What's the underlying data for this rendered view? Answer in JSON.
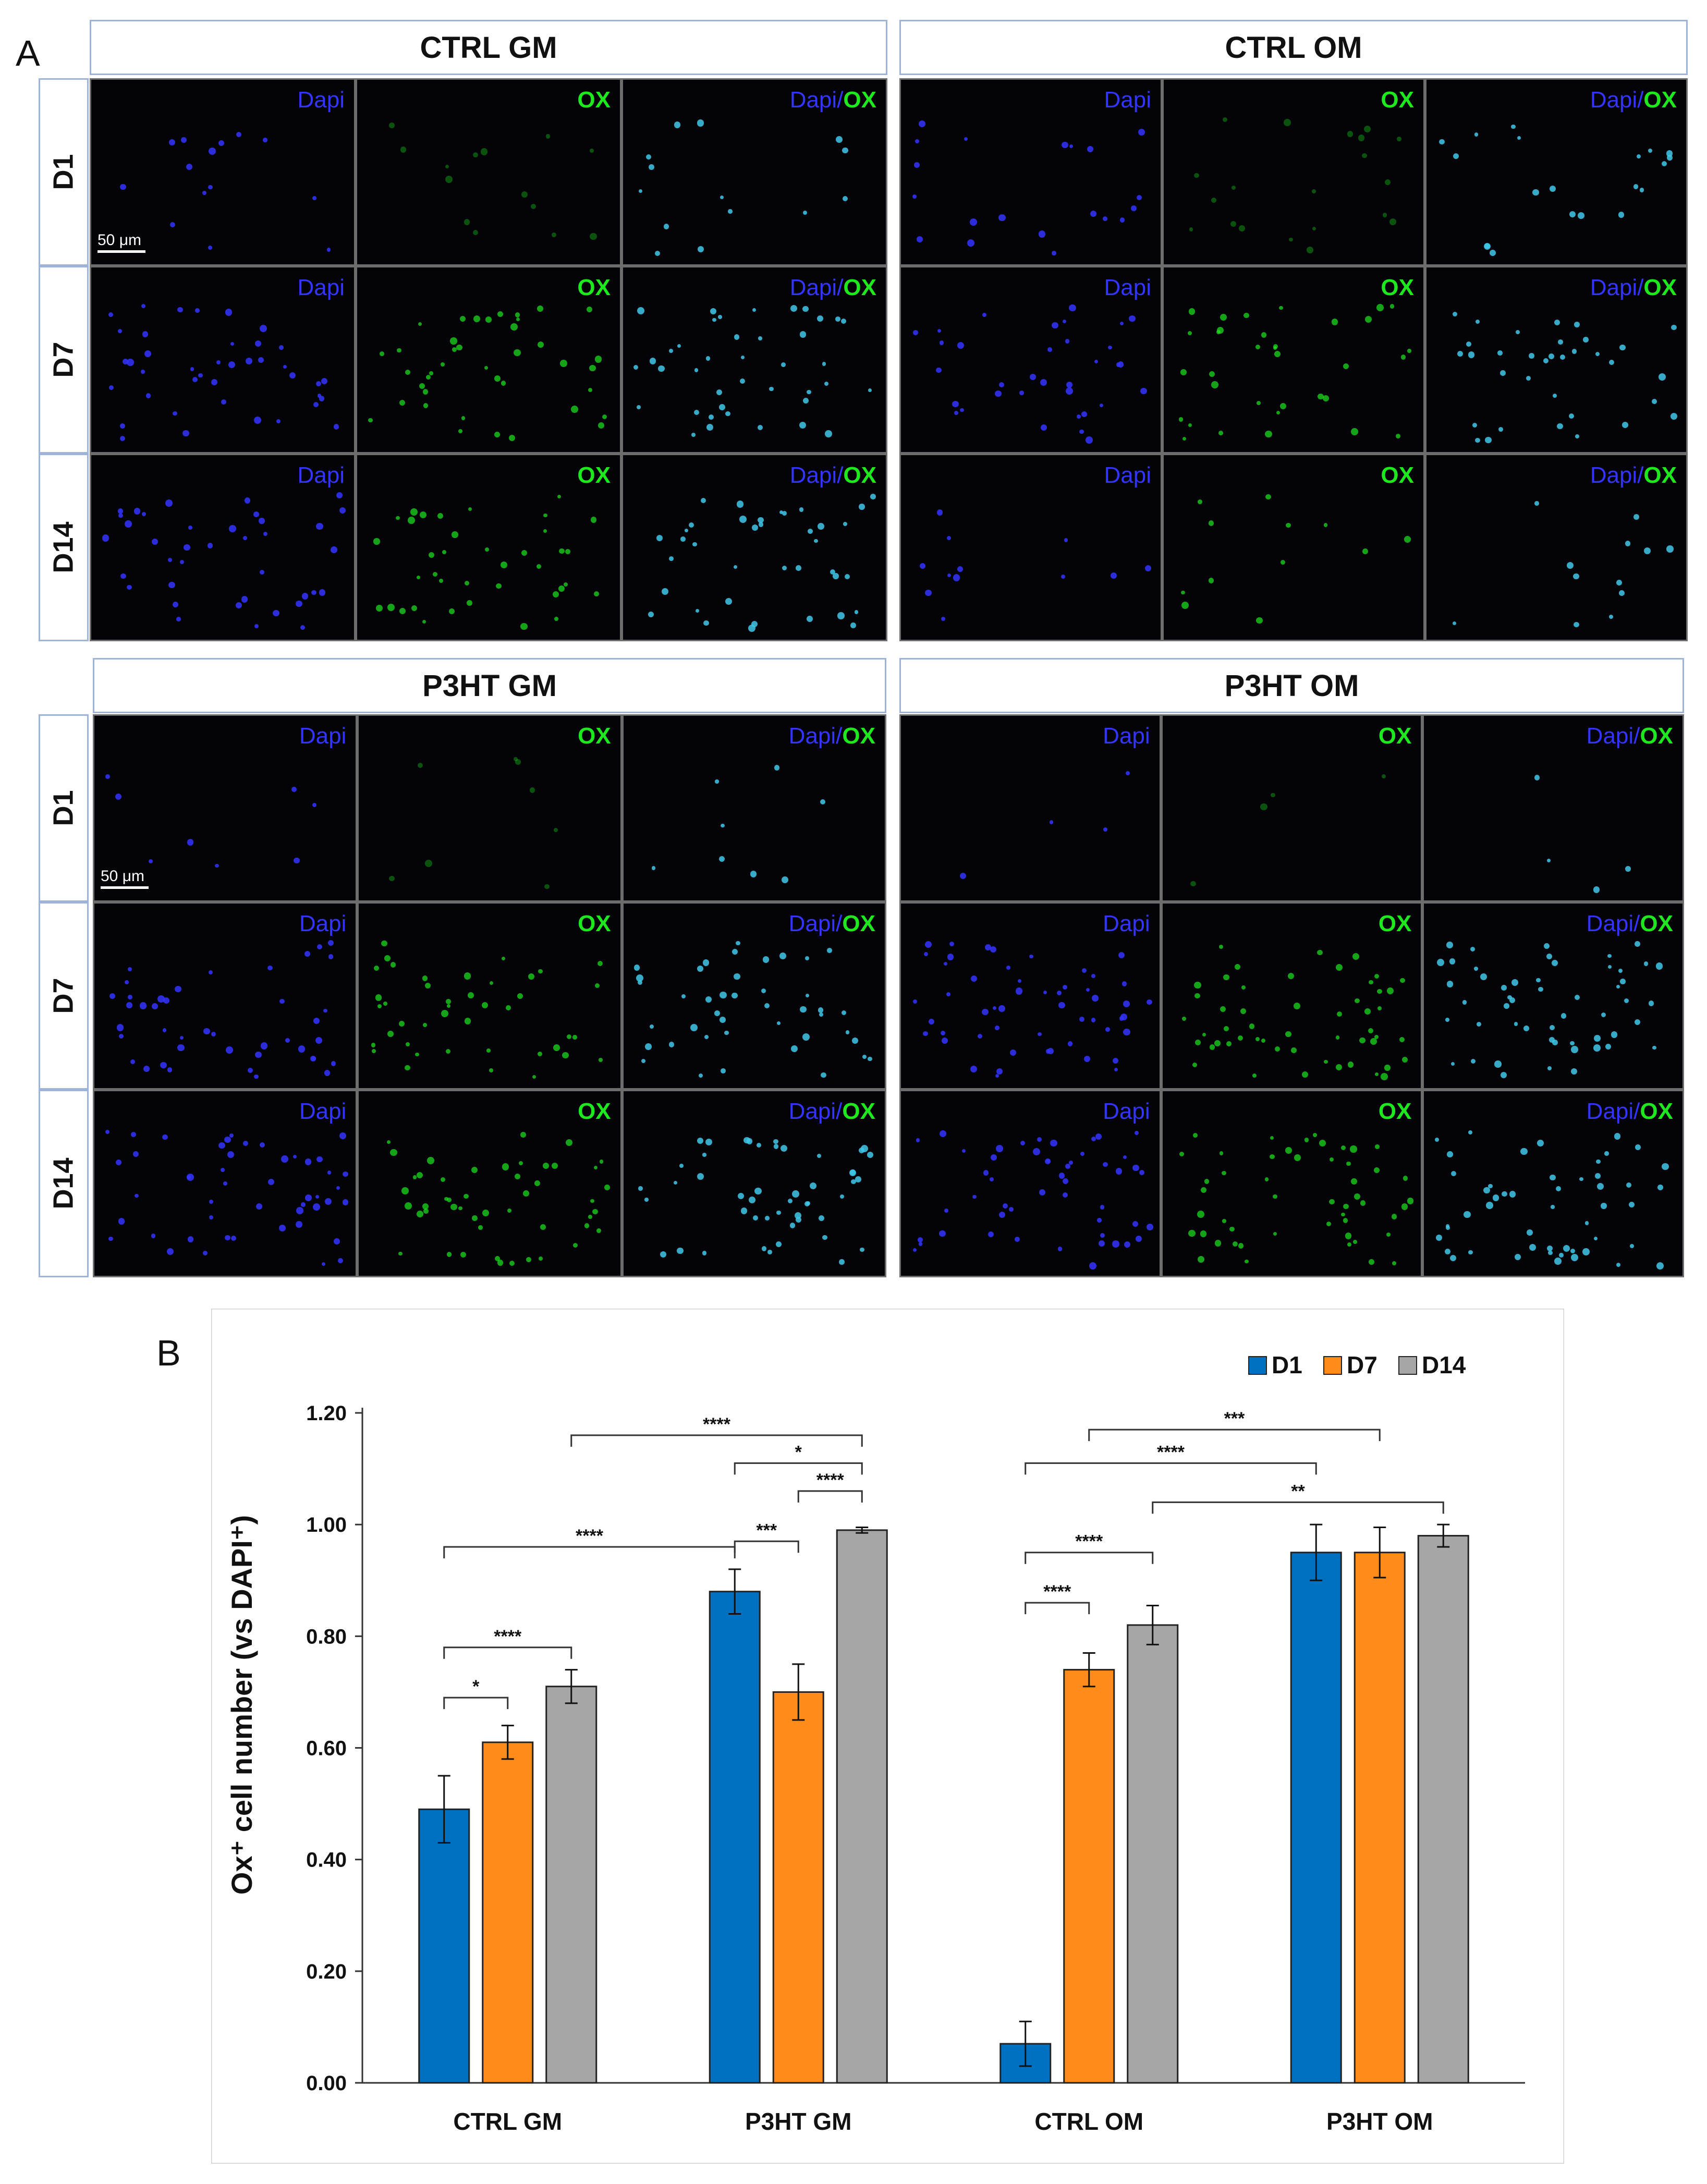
{
  "panel_a": {
    "letter": "A",
    "groups": [
      {
        "title": "CTRL GM"
      },
      {
        "title": "CTRL OM"
      },
      {
        "title": "P3HT GM"
      },
      {
        "title": "P3HT OM"
      }
    ],
    "rows": [
      "D1",
      "D7",
      "D14"
    ],
    "channels": {
      "dapi": "Dapi",
      "ox": "OX",
      "separator": "/"
    },
    "scale_bar": "50 μm",
    "colors": {
      "dapi": "#3434ff",
      "ox": "#1ee81e",
      "merge": "#3fc8e8"
    }
  },
  "panel_b": {
    "letter": "B"
  },
  "chart_data": {
    "type": "bar",
    "categories": [
      "CTRL GM",
      "P3HT GM",
      "CTRL OM",
      "P3HT OM"
    ],
    "series": [
      {
        "name": "D1",
        "color": "#0070c0",
        "values": [
          0.49,
          0.88,
          0.07,
          0.95
        ],
        "errors": [
          0.06,
          0.04,
          0.04,
          0.05
        ]
      },
      {
        "name": "D7",
        "color": "#ff8c1a",
        "values": [
          0.61,
          0.7,
          0.74,
          0.95
        ],
        "errors": [
          0.03,
          0.05,
          0.03,
          0.045
        ]
      },
      {
        "name": "D14",
        "color": "#a6a6a6",
        "values": [
          0.71,
          0.99,
          0.82,
          0.98
        ],
        "errors": [
          0.03,
          0.005,
          0.035,
          0.02
        ]
      }
    ],
    "title": "",
    "xlabel": "",
    "ylabel": "Ox⁺ cell number (vs DAPI⁺)",
    "ylim": [
      0,
      1.2
    ],
    "yticks": [
      "0.00",
      "0.20",
      "0.40",
      "0.60",
      "0.80",
      "1.00",
      "1.20"
    ],
    "legend_position": "top-right",
    "significance": [
      {
        "from": [
          0,
          0
        ],
        "to": [
          0,
          1
        ],
        "y": 0.69,
        "label": "*"
      },
      {
        "from": [
          0,
          0
        ],
        "to": [
          0,
          2
        ],
        "y": 0.78,
        "label": "****"
      },
      {
        "from": [
          0,
          0
        ],
        "to": [
          1,
          0
        ],
        "y": 0.96,
        "label": "****"
      },
      {
        "from": [
          0,
          2
        ],
        "to": [
          1,
          2
        ],
        "y": 1.16,
        "label": "****"
      },
      {
        "from": [
          1,
          0
        ],
        "to": [
          1,
          1
        ],
        "y": 0.97,
        "label": "***"
      },
      {
        "from": [
          1,
          1
        ],
        "to": [
          1,
          2
        ],
        "y": 1.06,
        "label": "****"
      },
      {
        "from": [
          1,
          0
        ],
        "to": [
          1,
          2
        ],
        "y": 1.11,
        "label": "*"
      },
      {
        "from": [
          2,
          0
        ],
        "to": [
          2,
          1
        ],
        "y": 0.86,
        "label": "****"
      },
      {
        "from": [
          2,
          0
        ],
        "to": [
          2,
          2
        ],
        "y": 0.95,
        "label": "****"
      },
      {
        "from": [
          2,
          0
        ],
        "to": [
          3,
          0
        ],
        "y": 1.11,
        "label": "****"
      },
      {
        "from": [
          2,
          1
        ],
        "to": [
          3,
          1
        ],
        "y": 1.17,
        "label": "***"
      },
      {
        "from": [
          2,
          2
        ],
        "to": [
          3,
          2
        ],
        "y": 1.04,
        "label": "**"
      }
    ]
  }
}
